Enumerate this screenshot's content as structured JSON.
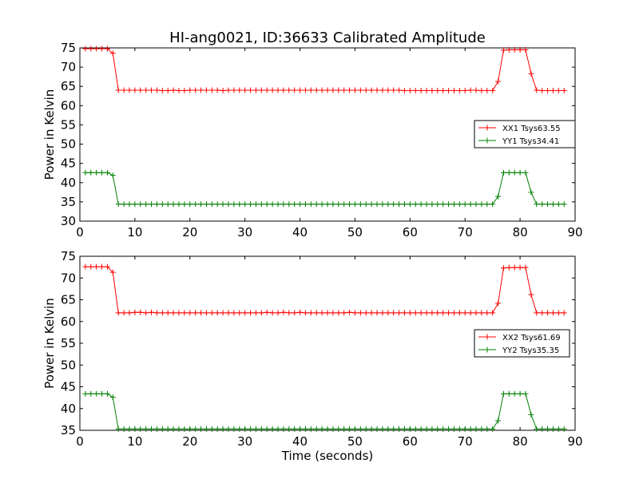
{
  "chart_data": [
    {
      "type": "line",
      "title": "HI-ang0021, ID:36633 Calibrated Amplitude",
      "xlabel": "",
      "ylabel": "Power in Kelvin",
      "xlim": [
        0,
        90
      ],
      "ylim": [
        30,
        75
      ],
      "xticks": [
        "0",
        "10",
        "20",
        "30",
        "40",
        "50",
        "60",
        "70",
        "80",
        "90"
      ],
      "yticks": [
        "30",
        "35",
        "40",
        "45",
        "50",
        "55",
        "60",
        "65",
        "70",
        "75"
      ],
      "grid": false,
      "legend_position": "right",
      "x": [
        1,
        2,
        3,
        4,
        5,
        6,
        7,
        8,
        9,
        10,
        11,
        12,
        13,
        14,
        15,
        16,
        17,
        18,
        19,
        20,
        21,
        22,
        23,
        24,
        25,
        26,
        27,
        28,
        29,
        30,
        31,
        32,
        33,
        34,
        35,
        36,
        37,
        38,
        39,
        40,
        41,
        42,
        43,
        44,
        45,
        46,
        47,
        48,
        49,
        50,
        51,
        52,
        53,
        54,
        55,
        56,
        57,
        58,
        59,
        60,
        61,
        62,
        63,
        64,
        65,
        66,
        67,
        68,
        69,
        70,
        71,
        72,
        73,
        74,
        75,
        76,
        77,
        78,
        79,
        80,
        81,
        82,
        83,
        84,
        85,
        86,
        87,
        88
      ],
      "series": [
        {
          "name": "XX1 Tsys63.55",
          "color": "#ff0000",
          "values": [
            74.8,
            74.8,
            74.8,
            74.8,
            74.8,
            73.6,
            64.0,
            64.0,
            64.0,
            64.0,
            64.0,
            64.0,
            64.0,
            64.0,
            63.9,
            63.9,
            64.0,
            63.9,
            63.9,
            64.0,
            64.0,
            64.0,
            64.0,
            64.0,
            64.0,
            63.9,
            64.0,
            64.0,
            64.0,
            64.0,
            64.0,
            64.0,
            64.0,
            64.0,
            64.0,
            64.0,
            64.0,
            64.0,
            64.0,
            64.0,
            64.0,
            64.0,
            64.0,
            64.0,
            64.0,
            64.0,
            64.0,
            64.0,
            64.0,
            64.0,
            64.0,
            64.0,
            64.0,
            64.0,
            64.0,
            64.0,
            64.0,
            64.0,
            63.9,
            63.9,
            63.9,
            63.9,
            63.9,
            63.9,
            63.9,
            63.9,
            63.9,
            63.9,
            63.9,
            63.9,
            64.0,
            64.0,
            63.9,
            63.9,
            63.9,
            66.3,
            74.4,
            74.5,
            74.5,
            74.5,
            74.5,
            68.3,
            64.0,
            63.9,
            63.9,
            63.9,
            63.9,
            63.9
          ]
        },
        {
          "name": "YY1 Tsys34.41",
          "color": "#008000",
          "values": [
            42.6,
            42.6,
            42.6,
            42.6,
            42.6,
            41.9,
            34.4,
            34.4,
            34.4,
            34.4,
            34.4,
            34.4,
            34.4,
            34.4,
            34.4,
            34.4,
            34.4,
            34.4,
            34.4,
            34.4,
            34.4,
            34.4,
            34.4,
            34.4,
            34.4,
            34.4,
            34.4,
            34.4,
            34.4,
            34.4,
            34.4,
            34.4,
            34.4,
            34.4,
            34.4,
            34.4,
            34.4,
            34.4,
            34.4,
            34.4,
            34.4,
            34.4,
            34.4,
            34.4,
            34.4,
            34.4,
            34.4,
            34.4,
            34.4,
            34.4,
            34.4,
            34.4,
            34.4,
            34.4,
            34.4,
            34.4,
            34.4,
            34.4,
            34.4,
            34.4,
            34.4,
            34.4,
            34.4,
            34.4,
            34.4,
            34.4,
            34.4,
            34.4,
            34.4,
            34.4,
            34.4,
            34.4,
            34.4,
            34.4,
            34.4,
            36.4,
            42.6,
            42.6,
            42.6,
            42.6,
            42.6,
            37.5,
            34.4,
            34.4,
            34.4,
            34.4,
            34.4,
            34.4
          ]
        }
      ]
    },
    {
      "type": "line",
      "title": "",
      "xlabel": "Time (seconds)",
      "ylabel": "Power in Kelvin",
      "xlim": [
        0,
        90
      ],
      "ylim": [
        35,
        75
      ],
      "xticks": [
        "0",
        "10",
        "20",
        "30",
        "40",
        "50",
        "60",
        "70",
        "80",
        "90"
      ],
      "yticks": [
        "35",
        "40",
        "45",
        "50",
        "55",
        "60",
        "65",
        "70",
        "75"
      ],
      "grid": false,
      "legend_position": "right",
      "x": [
        1,
        2,
        3,
        4,
        5,
        6,
        7,
        8,
        9,
        10,
        11,
        12,
        13,
        14,
        15,
        16,
        17,
        18,
        19,
        20,
        21,
        22,
        23,
        24,
        25,
        26,
        27,
        28,
        29,
        30,
        31,
        32,
        33,
        34,
        35,
        36,
        37,
        38,
        39,
        40,
        41,
        42,
        43,
        44,
        45,
        46,
        47,
        48,
        49,
        50,
        51,
        52,
        53,
        54,
        55,
        56,
        57,
        58,
        59,
        60,
        61,
        62,
        63,
        64,
        65,
        66,
        67,
        68,
        69,
        70,
        71,
        72,
        73,
        74,
        75,
        76,
        77,
        78,
        79,
        80,
        81,
        82,
        83,
        84,
        85,
        86,
        87,
        88
      ],
      "series": [
        {
          "name": "XX2 Tsys61.69",
          "color": "#ff0000",
          "values": [
            72.6,
            72.6,
            72.6,
            72.6,
            72.6,
            71.3,
            62.0,
            62.0,
            62.0,
            62.1,
            62.1,
            62.0,
            62.1,
            62.0,
            62.0,
            62.0,
            62.0,
            62.0,
            62.0,
            62.0,
            62.0,
            62.0,
            62.0,
            62.0,
            62.0,
            62.0,
            62.0,
            62.0,
            62.0,
            62.0,
            62.0,
            62.0,
            62.0,
            62.1,
            62.0,
            62.0,
            62.1,
            62.0,
            62.0,
            62.1,
            62.0,
            62.0,
            62.0,
            62.0,
            62.0,
            62.0,
            62.0,
            62.0,
            62.1,
            62.0,
            62.0,
            62.0,
            62.0,
            62.0,
            62.0,
            62.0,
            62.0,
            62.0,
            62.0,
            62.0,
            62.0,
            62.0,
            62.0,
            62.0,
            62.0,
            62.0,
            62.0,
            62.0,
            62.0,
            62.0,
            62.0,
            62.0,
            62.0,
            62.0,
            62.0,
            64.2,
            72.3,
            72.4,
            72.4,
            72.4,
            72.4,
            66.2,
            62.0,
            62.0,
            62.0,
            62.0,
            62.0,
            62.0
          ]
        },
        {
          "name": "YY2 Tsys35.35",
          "color": "#008000",
          "values": [
            43.4,
            43.4,
            43.4,
            43.4,
            43.4,
            42.6,
            35.3,
            35.3,
            35.3,
            35.3,
            35.3,
            35.3,
            35.3,
            35.3,
            35.3,
            35.3,
            35.3,
            35.3,
            35.3,
            35.3,
            35.3,
            35.3,
            35.3,
            35.3,
            35.3,
            35.3,
            35.3,
            35.3,
            35.3,
            35.3,
            35.3,
            35.3,
            35.3,
            35.3,
            35.3,
            35.3,
            35.3,
            35.3,
            35.3,
            35.3,
            35.3,
            35.3,
            35.3,
            35.3,
            35.3,
            35.3,
            35.3,
            35.3,
            35.3,
            35.3,
            35.3,
            35.3,
            35.3,
            35.3,
            35.3,
            35.3,
            35.3,
            35.3,
            35.3,
            35.3,
            35.3,
            35.3,
            35.3,
            35.3,
            35.3,
            35.3,
            35.3,
            35.3,
            35.3,
            35.3,
            35.3,
            35.3,
            35.3,
            35.3,
            35.3,
            37.2,
            43.4,
            43.4,
            43.4,
            43.4,
            43.4,
            38.6,
            35.3,
            35.3,
            35.3,
            35.3,
            35.3,
            35.3
          ]
        }
      ]
    }
  ]
}
